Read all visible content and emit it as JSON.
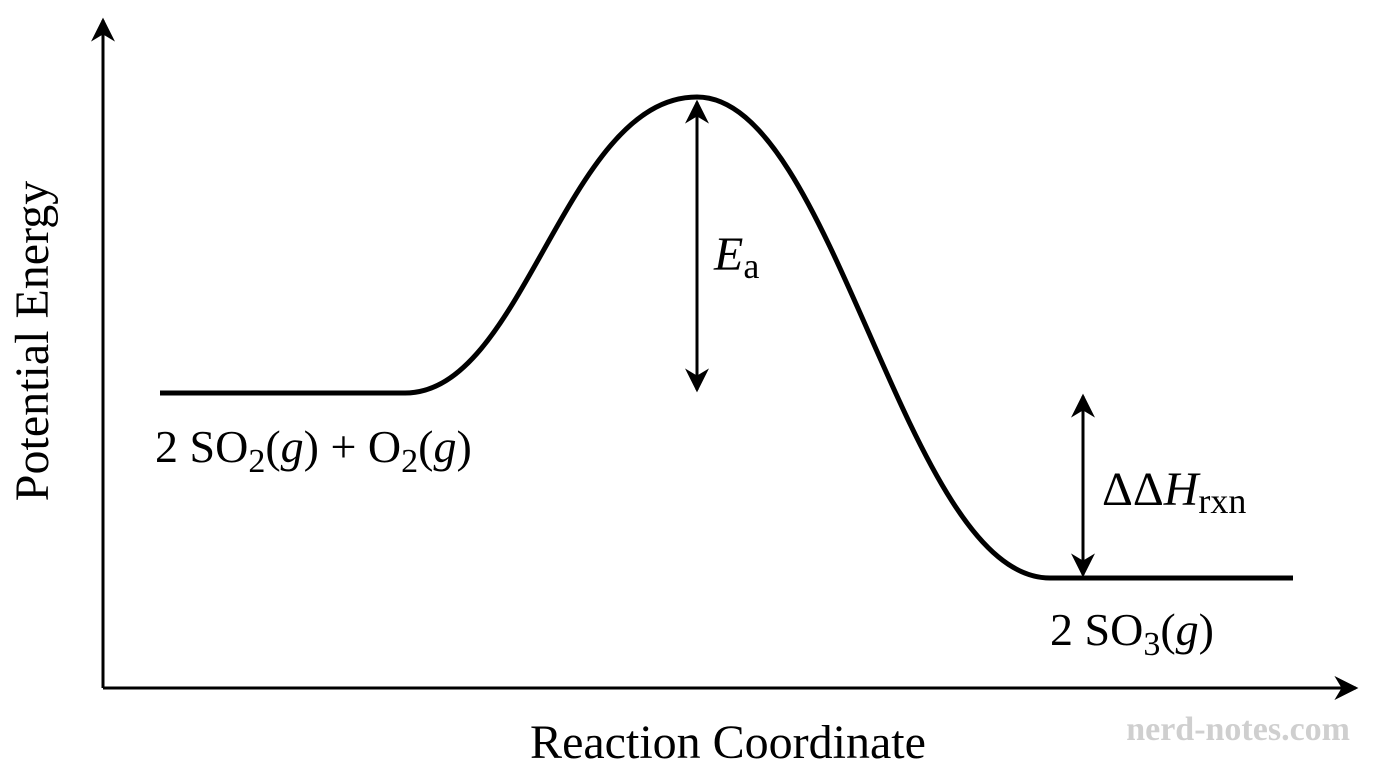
{
  "axes": {
    "y_label": "Potential Energy",
    "x_label": "Reaction Coordinate"
  },
  "labels": {
    "reactants": [
      "2 SO",
      "2",
      "(",
      "g",
      ") + O",
      "2",
      "(",
      "g",
      ")"
    ],
    "products": [
      "2 SO",
      "3",
      "(",
      "g",
      ")"
    ],
    "activation_energy": [
      "E",
      "a"
    ],
    "enthalpy": [
      "ΔΔ",
      "H",
      "rxn"
    ]
  },
  "watermark": "nerd-notes.com"
}
